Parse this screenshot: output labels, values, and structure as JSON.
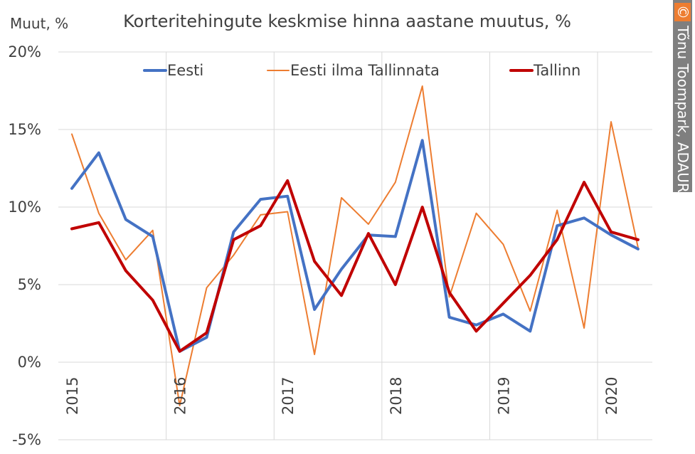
{
  "chart_data": {
    "type": "line",
    "title": "Korteritehingute keskmise hinna aastane muutus, %",
    "ylabel": "Muut, %",
    "xlabel": "",
    "ylim": [
      -5,
      20
    ],
    "y_ticks": [
      -5,
      0,
      5,
      10,
      15,
      20
    ],
    "y_tick_labels": [
      "-5%",
      "0%",
      "5%",
      "10%",
      "15%",
      "20%"
    ],
    "x_tick_labels": [
      "2015",
      "2016",
      "2017",
      "2018",
      "2019",
      "2020"
    ],
    "x_tick_quarter_index": [
      0,
      4,
      8,
      12,
      16,
      20
    ],
    "grid": true,
    "legend_position": "top",
    "series": [
      {
        "name": "Eesti",
        "color": "#4472C4",
        "width": 4,
        "values": [
          11.2,
          13.5,
          9.2,
          8.1,
          0.7,
          1.6,
          8.4,
          10.5,
          10.7,
          3.4,
          6.0,
          8.2,
          8.1,
          14.3,
          2.9,
          2.4,
          3.1,
          2.0,
          8.8,
          9.3,
          8.2,
          7.3
        ]
      },
      {
        "name": "Eesti ilma Tallinnata",
        "color": "#ED7D31",
        "width": 2,
        "values": [
          14.7,
          9.6,
          6.6,
          8.5,
          -2.8,
          4.8,
          6.9,
          9.5,
          9.7,
          0.5,
          10.6,
          8.9,
          11.6,
          17.8,
          4.2,
          9.6,
          7.6,
          3.3,
          9.8,
          2.2,
          15.5,
          7.4
        ]
      },
      {
        "name": "Tallinn",
        "color": "#C00000",
        "width": 4,
        "values": [
          8.6,
          9.0,
          5.9,
          4.0,
          0.7,
          1.9,
          7.9,
          8.8,
          11.7,
          6.5,
          4.3,
          8.3,
          5.0,
          10.0,
          4.5,
          2.0,
          3.8,
          5.6,
          7.9,
          11.6,
          8.4,
          7.9
        ]
      }
    ]
  },
  "credit": {
    "symbol": "©",
    "text": "Tõnu Toompark, ADAUR.EE",
    "bg_color": "#7F7F7F",
    "symbol_bg_color": "#ED7D31"
  }
}
